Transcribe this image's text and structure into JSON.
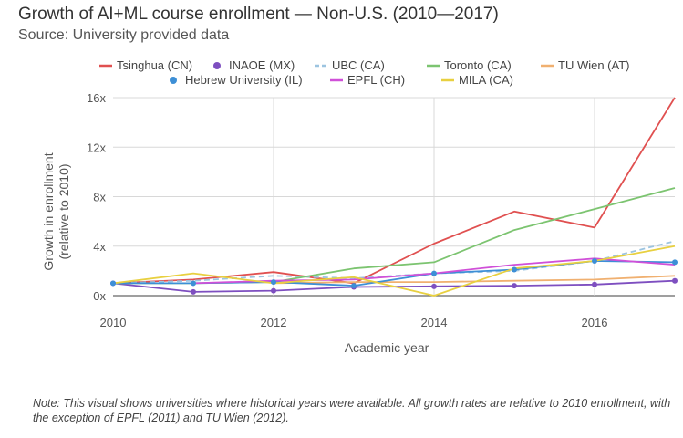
{
  "chart_data": {
    "type": "line",
    "title": "Growth of AI+ML course enrollment — Non-U.S. (2010—2017)",
    "subtitle": "Source: University provided data",
    "xlabel": "Academic year",
    "ylabel_line1": "Growth in enrollment",
    "ylabel_line2": "(relative to 2010)",
    "xlim": [
      2010,
      2017
    ],
    "ylim": [
      0,
      16
    ],
    "x": [
      2010,
      2011,
      2012,
      2013,
      2014,
      2015,
      2016,
      2017
    ],
    "x_ticks": [
      {
        "value": 2010,
        "label": "2010"
      },
      {
        "value": 2012,
        "label": "2012"
      },
      {
        "value": 2014,
        "label": "2014"
      },
      {
        "value": 2016,
        "label": "2016"
      }
    ],
    "y_ticks": [
      {
        "value": 0,
        "label": "0x"
      },
      {
        "value": 4,
        "label": "4x"
      },
      {
        "value": 8,
        "label": "8x"
      },
      {
        "value": 12,
        "label": "12x"
      },
      {
        "value": 16,
        "label": "16x"
      }
    ],
    "series": [
      {
        "name": "Tsinghua (CN)",
        "color": "#e05050",
        "marker": "line",
        "dashed": false,
        "values": [
          1.0,
          1.3,
          1.9,
          1.0,
          4.2,
          6.8,
          5.5,
          16.0
        ]
      },
      {
        "name": "INAOE (MX)",
        "color": "#7e4fc0",
        "marker": "dot",
        "dashed": false,
        "values": [
          1.0,
          0.3,
          0.4,
          0.7,
          0.75,
          0.8,
          0.9,
          1.2
        ]
      },
      {
        "name": "UBC (CA)",
        "color": "#9cc4e0",
        "marker": "line",
        "dashed": true,
        "values": [
          1.0,
          1.2,
          1.6,
          1.4,
          1.8,
          2.0,
          2.8,
          4.4
        ]
      },
      {
        "name": "Toronto (CA)",
        "color": "#7cc470",
        "marker": "line",
        "dashed": false,
        "values": [
          1.0,
          1.0,
          1.1,
          2.2,
          2.7,
          5.3,
          7.0,
          8.7
        ]
      },
      {
        "name": "TU Wien (AT)",
        "color": "#f0b070",
        "marker": "line",
        "dashed": false,
        "values": [
          null,
          null,
          1.0,
          1.1,
          1.1,
          1.2,
          1.3,
          1.6
        ]
      },
      {
        "name": "Hebrew University (IL)",
        "color": "#3d8fd6",
        "marker": "dot",
        "dashed": false,
        "values": [
          1.0,
          1.0,
          1.1,
          0.8,
          1.8,
          2.1,
          2.8,
          2.7
        ]
      },
      {
        "name": "EPFL (CH)",
        "color": "#d050d8",
        "marker": "line",
        "dashed": false,
        "values": [
          null,
          1.0,
          1.2,
          1.3,
          1.8,
          2.5,
          3.0,
          2.5
        ]
      },
      {
        "name": "MILA (CA)",
        "color": "#e8d040",
        "marker": "line",
        "dashed": false,
        "values": [
          1.0,
          1.8,
          1.0,
          1.5,
          0.0,
          2.2,
          2.8,
          4.0
        ]
      }
    ],
    "note": "Note: This visual shows universities where historical years were available. All growth rates are relative to 2010 enrollment, with the exception of EPFL (2011) and TU Wien (2012)."
  }
}
